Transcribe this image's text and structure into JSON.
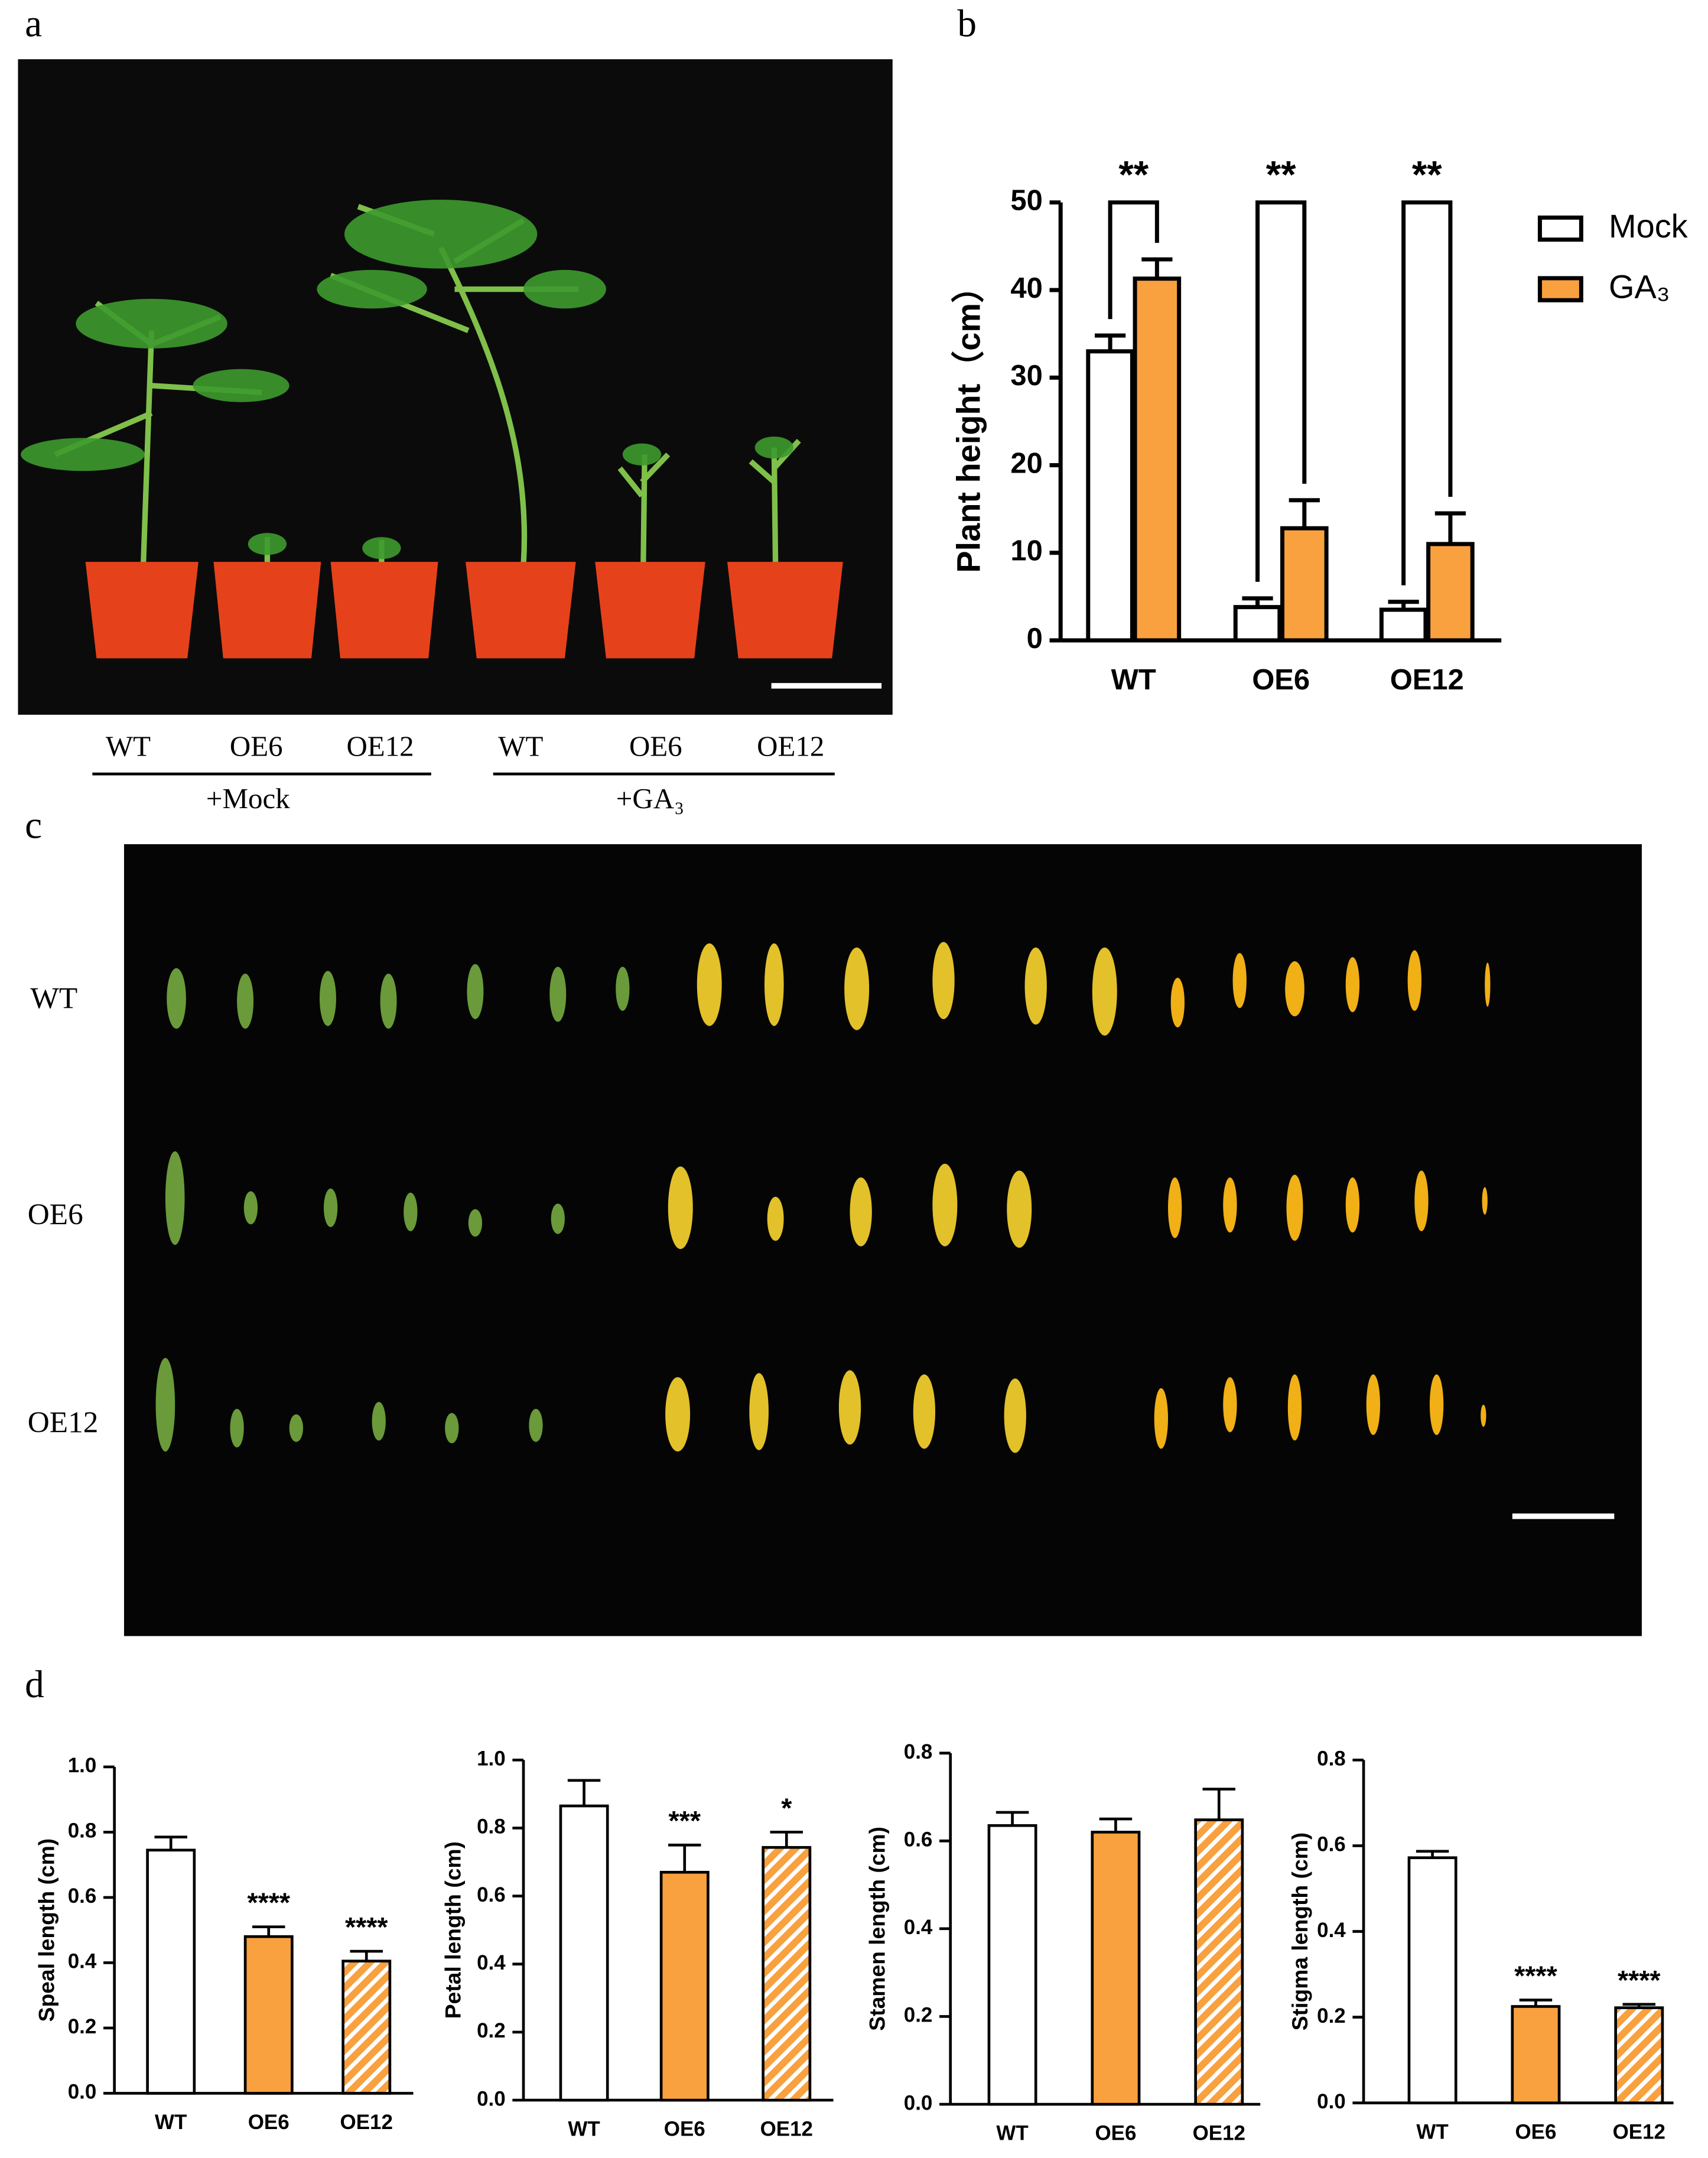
{
  "panel_labels": [
    "a",
    "b",
    "c",
    "d"
  ],
  "panel_a": {
    "labels": [
      "WT",
      "OE6",
      "OE12",
      "WT",
      "OE6",
      "OE12"
    ],
    "groups": [
      "+Mock",
      "+GA₃"
    ]
  },
  "panel_c": {
    "rows": [
      "WT",
      "OE6",
      "OE12"
    ]
  },
  "chart_data": [
    {
      "type": "grouped-bar",
      "ylabel": "Plant height（cm）",
      "categories": [
        "WT",
        "OE6",
        "OE12"
      ],
      "series": [
        {
          "name": "Mock",
          "color": "#ffffff",
          "values": [
            33,
            3.8,
            3.5
          ],
          "errors": [
            1.8,
            1,
            0.9
          ]
        },
        {
          "name": "GA₃",
          "color": "#f9a03f",
          "values": [
            41.3,
            12.8,
            11
          ],
          "errors": [
            2.2,
            3.2,
            3.5
          ]
        }
      ],
      "significance": [
        "**",
        "**",
        "**"
      ],
      "ylim": [
        0,
        50
      ],
      "yticks": [
        0,
        10,
        20,
        30,
        40,
        50
      ],
      "legend": "upper right"
    },
    {
      "type": "bar",
      "ylabel": "Speal length (cm)",
      "categories": [
        "WT",
        "OE6",
        "OE12"
      ],
      "values": [
        0.745,
        0.48,
        0.405
      ],
      "errors": [
        0.04,
        0.03,
        0.03
      ],
      "colors": [
        "#ffffff",
        "#f9a03f",
        "#f9a03f"
      ],
      "hatch": [
        false,
        false,
        true
      ],
      "annotations": [
        null,
        "****",
        "****"
      ],
      "ylim": [
        0,
        1.0
      ],
      "yticks": [
        {
          "value": 0,
          "label": "0.0"
        },
        0.2,
        0.4,
        0.6,
        0.8,
        {
          "value": 1,
          "label": "1.0"
        }
      ]
    },
    {
      "type": "bar",
      "ylabel": "Petal length (cm)",
      "categories": [
        "WT",
        "OE6",
        "OE12"
      ],
      "values": [
        0.865,
        0.67,
        0.743
      ],
      "errors": [
        0.075,
        0.08,
        0.045
      ],
      "colors": [
        "#ffffff",
        "#f9a03f",
        "#f9a03f"
      ],
      "hatch": [
        false,
        false,
        true
      ],
      "annotations": [
        null,
        "***",
        "*"
      ],
      "ylim": [
        0,
        1.0
      ],
      "yticks": [
        {
          "value": 0,
          "label": "0.0"
        },
        0.2,
        0.4,
        0.6,
        0.8,
        {
          "value": 1,
          "label": "1.0"
        }
      ]
    },
    {
      "type": "bar",
      "ylabel": "Stamen length (cm)",
      "categories": [
        "WT",
        "OE6",
        "OE12"
      ],
      "values": [
        0.635,
        0.62,
        0.648
      ],
      "errors": [
        0.03,
        0.03,
        0.07
      ],
      "colors": [
        "#ffffff",
        "#f9a03f",
        "#f9a03f"
      ],
      "hatch": [
        false,
        false,
        true
      ],
      "ylim": [
        0,
        0.8
      ],
      "yticks": [
        {
          "value": 0,
          "label": "0.0"
        },
        0.2,
        0.4,
        0.6,
        0.8
      ]
    },
    {
      "type": "bar",
      "ylabel": "Stigma length (cm)",
      "categories": [
        "WT",
        "OE6",
        "OE12"
      ],
      "values": [
        0.572,
        0.225,
        0.222
      ],
      "errors": [
        0.015,
        0.015,
        0.008
      ],
      "colors": [
        "#ffffff",
        "#f9a03f",
        "#f9a03f"
      ],
      "hatch": [
        false,
        false,
        true
      ],
      "annotations": [
        null,
        "****",
        "****"
      ],
      "ylim": [
        0,
        0.8
      ],
      "yticks": [
        {
          "value": 0,
          "label": "0.0"
        },
        0.2,
        0.4,
        0.6,
        0.8
      ]
    }
  ]
}
